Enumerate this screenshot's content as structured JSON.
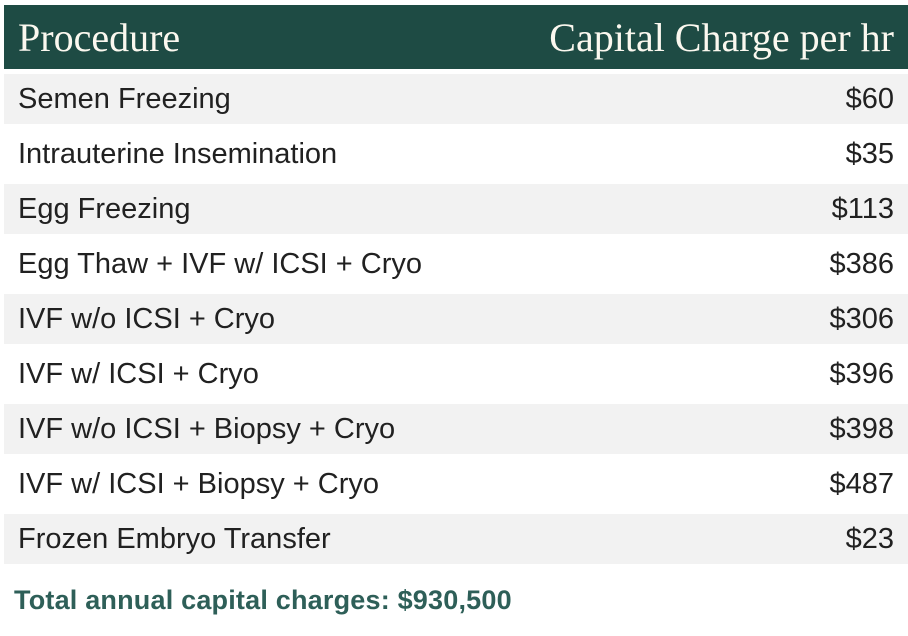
{
  "header": {
    "procedure_label": "Procedure",
    "charge_label": "Capital Charge per hr"
  },
  "rows": [
    {
      "procedure": "Semen Freezing",
      "charge": "$60"
    },
    {
      "procedure": "Intrauterine Insemination",
      "charge": "$35"
    },
    {
      "procedure": "Egg Freezing",
      "charge": "$113"
    },
    {
      "procedure": "Egg Thaw + IVF w/ ICSI + Cryo",
      "charge": "$386"
    },
    {
      "procedure": "IVF w/o ICSI + Cryo",
      "charge": "$306"
    },
    {
      "procedure": "IVF w/ ICSI + Cryo",
      "charge": "$396"
    },
    {
      "procedure": "IVF w/o ICSI + Biopsy + Cryo",
      "charge": "$398"
    },
    {
      "procedure": "IVF w/ ICSI + Biopsy + Cryo",
      "charge": "$487"
    },
    {
      "procedure": "Frozen Embryo Transfer",
      "charge": "$23"
    }
  ],
  "summary": {
    "total_text": "Total annual capital charges: $930,500"
  },
  "colors": {
    "header_bg": "#1e4b44",
    "header_text": "#fbf8ef",
    "row_alt_bg": "#f2f2f2",
    "body_text": "#212121",
    "total_text": "#2e5f58"
  }
}
